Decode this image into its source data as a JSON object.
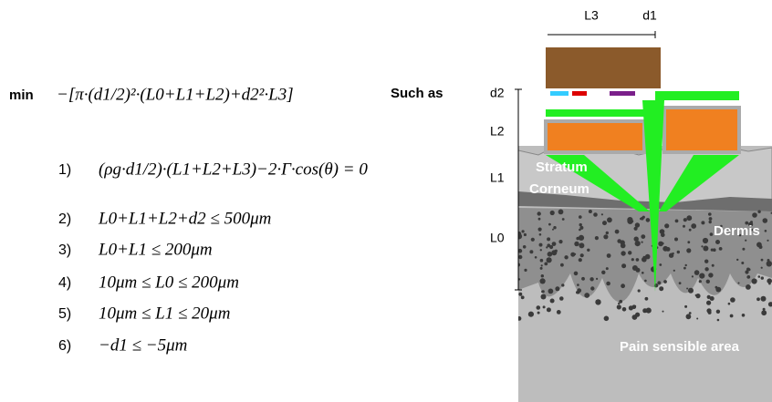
{
  "objective": {
    "label": "min",
    "expression": "−[π·(d1/2)²·(L0+L1+L2)+d2²·L3]",
    "suffix": "Such as"
  },
  "constraints": [
    {
      "number": "1)",
      "expression": "(ρg·d1/2)·(L1+L2+L3)−2·Γ·cos(θ) = 0"
    },
    {
      "number": "2)",
      "expression": "L0+L1+L2+d2 ≤ 500μm"
    },
    {
      "number": "3)",
      "expression": "L0+L1 ≤ 200μm"
    },
    {
      "number": "4)",
      "expression": "10μm ≤ L0 ≤ 200μm"
    },
    {
      "number": "5)",
      "expression": "10μm ≤ L1 ≤ 20μm"
    },
    {
      "number": "6)",
      "expression": "−d1 ≤ −5μm"
    }
  ],
  "diagram": {
    "top_labels": [
      "L3",
      "d1"
    ],
    "side_labels": [
      "d2",
      "L2",
      "L1",
      "L0"
    ],
    "region_labels": [
      "Stratum",
      "Corneum",
      "Dermis",
      "Pain sensible area"
    ]
  }
}
